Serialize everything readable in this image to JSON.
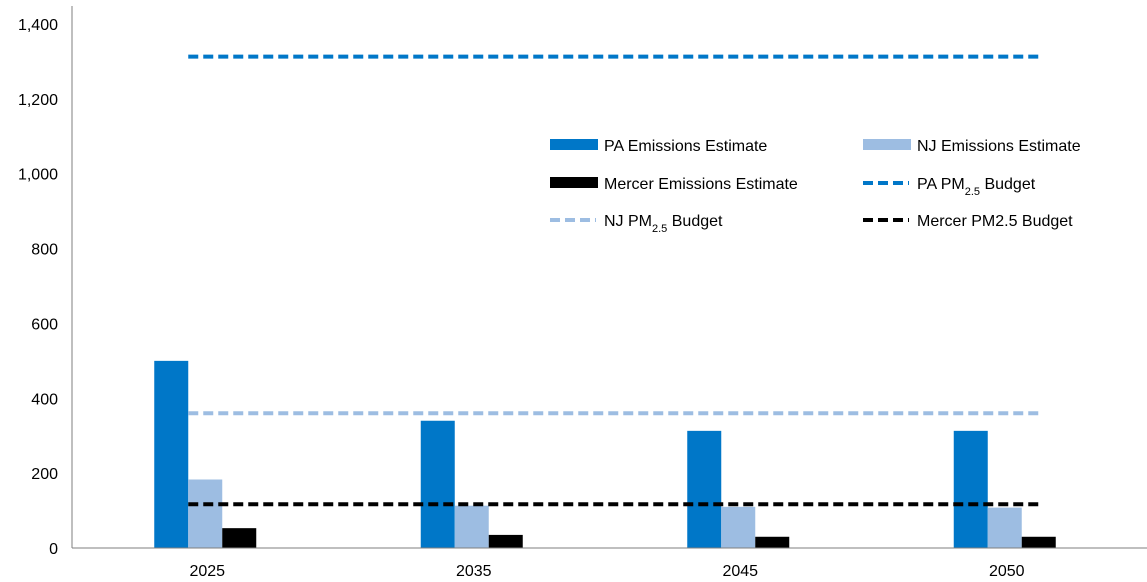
{
  "chart_data": {
    "type": "bar",
    "title": "",
    "xlabel": "",
    "ylabel": "",
    "categories": [
      "2025",
      "2035",
      "2045",
      "2050"
    ],
    "ylim": [
      0,
      1400
    ],
    "yticks": [
      0,
      200,
      400,
      600,
      800,
      1000,
      1200,
      1400
    ],
    "ytick_labels": [
      "0",
      "200",
      "400",
      "600",
      "800",
      "1,000",
      "1,200",
      "1,400"
    ],
    "grid": false,
    "legend_position": "upper-right inside plot",
    "series": [
      {
        "name": "PA Emissions Estimate",
        "values": [
          500,
          340,
          313,
          313
        ],
        "color": "#0077c8"
      },
      {
        "name": "NJ Emissions Estimate",
        "values": [
          183,
          113,
          110,
          108
        ],
        "color": "#9dbde2"
      },
      {
        "name": "Mercer Emissions Estimate",
        "values": [
          53,
          35,
          30,
          30
        ],
        "color": "#000000"
      }
    ],
    "budget_lines": [
      {
        "name_main": "PA PM",
        "name_sub": "2.5",
        "name_suffix": " Budget",
        "value": 1313,
        "color": "#0077c8",
        "style": "dashed"
      },
      {
        "name_main": "NJ PM",
        "name_sub": "2.5",
        "name_suffix": " Budget",
        "value": 360,
        "color": "#9dbde2",
        "style": "dashed"
      },
      {
        "name_main": "Mercer PM2.5 Budget",
        "name_sub": "",
        "name_suffix": "",
        "value": 117,
        "color": "#000000",
        "style": "dashed"
      }
    ]
  }
}
